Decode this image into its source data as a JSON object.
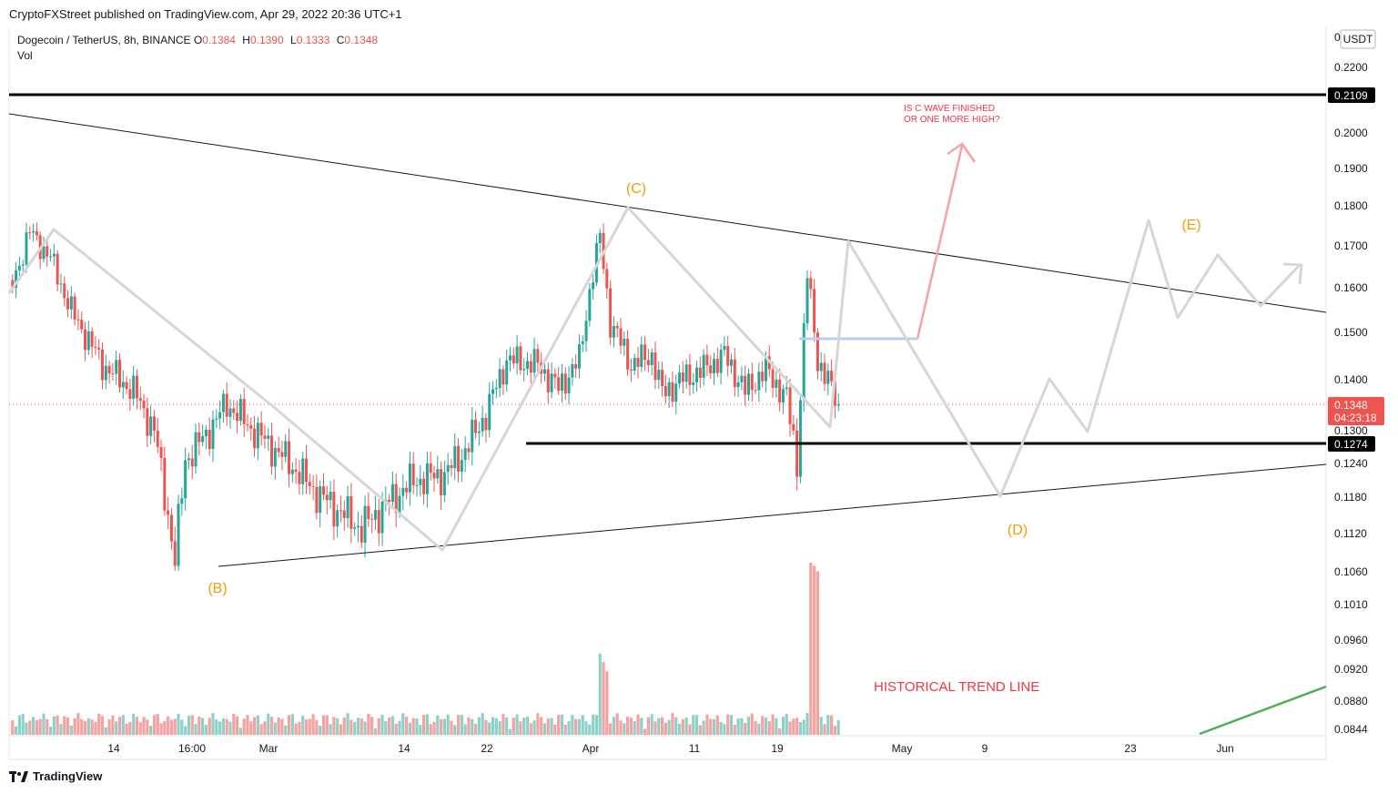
{
  "publisher": "CryptoFXStreet published on TradingView.com, Apr 29, 2022 20:36 UTC+1",
  "symbol": "Dogecoin / TetherUS, 8h, BINANCE",
  "ohlc": {
    "o_label": "O",
    "o": "0.1384",
    "h_label": "H",
    "h": "0.1390",
    "l_label": "L",
    "l": "0.1333",
    "c_label": "C",
    "c": "0.1348"
  },
  "volume_label": "Vol",
  "brand": "TradingView",
  "colors": {
    "up": "#26a69a",
    "down": "#ef5350",
    "vol_up": "#8fd1c9",
    "vol_down": "#f4a3a1",
    "wave": "#f59d00",
    "path": "#d6d6d6",
    "note": "#f23645",
    "trend": "#4caf50",
    "projection": "#f7a1a1",
    "range": "#b9cdf5"
  },
  "chart_data": {
    "type": "candlestick",
    "y_axis": {
      "unit": "USDT",
      "min": 0.0844,
      "max": 0.225,
      "ticks": [
        "0",
        "0.2200",
        "0.2000",
        "0.1900",
        "0.1800",
        "0.1700",
        "0.1600",
        "0.1500",
        "0.1400",
        "0.1300",
        "0.1240",
        "0.1180",
        "0.1120",
        "0.1060",
        "0.1010",
        "0.0960",
        "0.0920",
        "0.0880",
        "0.0844"
      ]
    },
    "x_axis": {
      "ticks": [
        "14",
        "16:00",
        "Mar",
        "14",
        "22",
        "Apr",
        "11",
        "19",
        "May",
        "9",
        "23",
        "Jun"
      ]
    },
    "price_labels": {
      "upper_level": "0.2109",
      "support_level": "0.1274",
      "last_price": "0.1348",
      "countdown": "04:23:18"
    },
    "annotations": {
      "wave_b": "(B)",
      "wave_c": "(C)",
      "wave_d": "(D)",
      "wave_e": "(E)",
      "note_line1": "IS C WAVE FINISHED",
      "note_line2": "OR ONE MORE HIGH?",
      "trend_note": "HISTORICAL TREND LINE"
    },
    "anchors": [
      {
        "date": "Feb 08",
        "price": 0.1582
      },
      {
        "date": "Feb 10",
        "price": 0.1733
      },
      {
        "date": "Feb 12",
        "price": 0.1668
      },
      {
        "date": "Feb 14",
        "price": 0.1545
      },
      {
        "date": "Feb 17",
        "price": 0.143
      },
      {
        "date": "Feb 20",
        "price": 0.1375
      },
      {
        "date": "Feb 22",
        "price": 0.1298
      },
      {
        "date": "Feb 24",
        "price": 0.1075
      },
      {
        "date": "Feb 25",
        "price": 0.1245
      },
      {
        "date": "Feb 27",
        "price": 0.129
      },
      {
        "date": "Mar 01",
        "price": 0.135
      },
      {
        "date": "Mar 04",
        "price": 0.129
      },
      {
        "date": "Mar 07",
        "price": 0.124
      },
      {
        "date": "Mar 10",
        "price": 0.118
      },
      {
        "date": "Mar 14",
        "price": 0.1128
      },
      {
        "date": "Mar 16",
        "price": 0.116
      },
      {
        "date": "Mar 19",
        "price": 0.1208
      },
      {
        "date": "Mar 22",
        "price": 0.1218
      },
      {
        "date": "Mar 24",
        "price": 0.1262
      },
      {
        "date": "Mar 26",
        "price": 0.133
      },
      {
        "date": "Mar 28",
        "price": 0.144
      },
      {
        "date": "Mar 31",
        "price": 0.143
      },
      {
        "date": "Apr 02",
        "price": 0.138
      },
      {
        "date": "Apr 04",
        "price": 0.144
      },
      {
        "date": "Apr 05",
        "price": 0.159
      },
      {
        "date": "Apr 06",
        "price": 0.172
      },
      {
        "date": "Apr 07",
        "price": 0.152
      },
      {
        "date": "Apr 09",
        "price": 0.143
      },
      {
        "date": "Apr 11",
        "price": 0.145
      },
      {
        "date": "Apr 12",
        "price": 0.137
      },
      {
        "date": "Apr 14",
        "price": 0.14
      },
      {
        "date": "Apr 16",
        "price": 0.142
      },
      {
        "date": "Apr 18",
        "price": 0.145
      },
      {
        "date": "Apr 20",
        "price": 0.1375
      },
      {
        "date": "Apr 22",
        "price": 0.142
      },
      {
        "date": "Apr 24",
        "price": 0.136
      },
      {
        "date": "Apr 25",
        "price": 0.124
      },
      {
        "date": "Apr 26",
        "price": 0.163
      },
      {
        "date": "Apr 27",
        "price": 0.144
      },
      {
        "date": "Apr 29",
        "price": 0.1348
      }
    ],
    "volume_spikes": [
      {
        "date": "Apr 06",
        "level": "high"
      },
      {
        "date": "Apr 26",
        "level": "highest"
      }
    ]
  }
}
